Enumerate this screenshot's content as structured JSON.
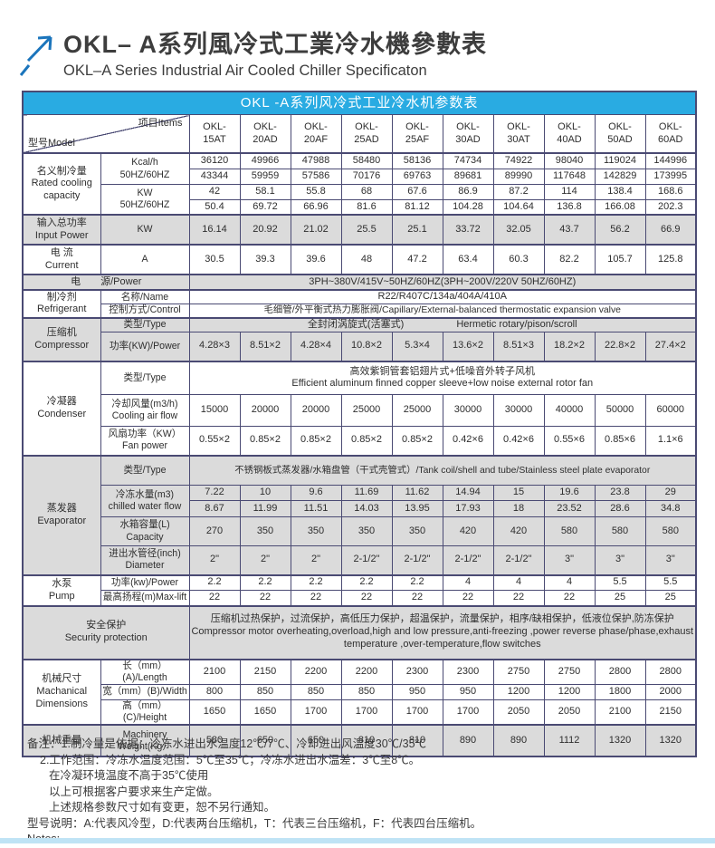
{
  "page": {
    "title_zh": "OKL– A系列風冷式工業冷水機參數表",
    "title_en": "OKL–A Series Industrial Air Cooled Chiller Specificaton"
  },
  "colors": {
    "banner_blue": "#29ABE2",
    "row_gray": "#DBDBDB",
    "border": "#4A4A73",
    "arrow_blue": "#1B75BC",
    "footer_bar": "#BFE3F5"
  },
  "table": {
    "banner": "OKL -A系列风冷式工业冷水机参数表",
    "corner": {
      "model": "型号Model",
      "items": "项目Items"
    },
    "models": [
      "OKL-\n15AT",
      "OKL-\n20AD",
      "OKL-\n20AF",
      "OKL-\n25AD",
      "OKL-\n25AF",
      "OKL-\n30AD",
      "OKL-\n30AT",
      "OKL-\n40AD",
      "OKL-\n50AD",
      "OKL-\n60AD"
    ],
    "capacity": {
      "label_zh": "名义制冷量",
      "label_en": "Rated cooling capacity",
      "item_kcal": "Kcal/h\n50HZ/60HZ",
      "item_kw": "KW\n50HZ/60HZ",
      "kcal_50hz": [
        "36120",
        "49966",
        "47988",
        "58480",
        "58136",
        "74734",
        "74922",
        "98040",
        "119024",
        "144996"
      ],
      "kcal_60hz": [
        "43344",
        "59959",
        "57586",
        "70176",
        "69763",
        "89681",
        "89990",
        "117648",
        "142829",
        "173995"
      ],
      "kw_50hz": [
        "42",
        "58.1",
        "55.8",
        "68",
        "67.6",
        "86.9",
        "87.2",
        "114",
        "138.4",
        "168.6"
      ],
      "kw_60hz": [
        "50.4",
        "69.72",
        "66.96",
        "81.6",
        "81.12",
        "104.28",
        "104.64",
        "136.8",
        "166.08",
        "202.3"
      ]
    },
    "input_power": {
      "label_zh": "输入总功率",
      "label_en": "Input Power",
      "item": "KW",
      "values": [
        "16.14",
        "20.92",
        "21.02",
        "25.5",
        "25.1",
        "33.72",
        "32.05",
        "43.7",
        "56.2",
        "66.9"
      ]
    },
    "current": {
      "label_zh": "电 流",
      "label_en": "Current",
      "item": "A",
      "values": [
        "30.5",
        "39.3",
        "39.6",
        "48",
        "47.2",
        "63.4",
        "60.3",
        "82.2",
        "105.7",
        "125.8"
      ]
    },
    "power_supply": {
      "label": "电　　源/Power",
      "value": "3PH~380V/415V~50HZ/60HZ(3PH~200V/220V  50HZ/60HZ)"
    },
    "refrigerant": {
      "label_zh": "制冷剂",
      "label_en": "Refrigerant",
      "item_name": "名称/Name",
      "name_value": "R22/R407C/134a/404A/410A",
      "item_control": "控制方式/Control",
      "control_value": "毛细管/外平衡式热力膨胀阀/Capillary/External-balanced thermostatic expansion valve"
    },
    "compressor": {
      "label_zh": "压缩机",
      "label_en": "Compressor",
      "item_type": "类型/Type",
      "type_zh": "全封闭涡旋式(活塞式)",
      "type_en": "Hermetic rotary/pison/scroll",
      "item_power": "功率(KW)/Power",
      "power_values": [
        "4.28×3",
        "8.51×2",
        "4.28×4",
        "10.8×2",
        "5.3×4",
        "13.6×2",
        "8.51×3",
        "18.2×2",
        "22.8×2",
        "27.4×2"
      ]
    },
    "condenser": {
      "label_zh": "冷凝器",
      "label_en": "Condenser",
      "item_type": "类型/Type",
      "type_zh": "高效紫铜管套铝翅片式+低噪音外转子风机",
      "type_en": "Efficient aluminum finned copper sleeve+low noise external rotor fan",
      "item_airflow": "冷却风量(m3/h)\nCooling air flow",
      "airflow_values": [
        "15000",
        "20000",
        "20000",
        "25000",
        "25000",
        "30000",
        "30000",
        "40000",
        "50000",
        "60000"
      ],
      "item_fan": "风扇功率（KW）\nFan power",
      "fan_values": [
        "0.55×2",
        "0.85×2",
        "0.85×2",
        "0.85×2",
        "0.85×2",
        "0.42×6",
        "0.42×6",
        "0.55×6",
        "0.85×6",
        "1.1×6"
      ]
    },
    "evaporator": {
      "label_zh": "蒸发器",
      "label_en": "Evaporator",
      "item_type": "类型/Type",
      "type_value": "不锈钢板式蒸发器/水箱盘管（干式壳管式）/Tank coil/shell and tube/Stainless steel plate evaporator",
      "item_chilled": "冷冻水量(m3)\nchilled water flow",
      "chilled_50hz": [
        "7.22",
        "10",
        "9.6",
        "11.69",
        "11.62",
        "14.94",
        "15",
        "19.6",
        "23.8",
        "29"
      ],
      "chilled_60hz": [
        "8.67",
        "11.99",
        "11.51",
        "14.03",
        "13.95",
        "17.93",
        "18",
        "23.52",
        "28.6",
        "34.8"
      ],
      "item_tank": "水箱容量(L)\nCapacity",
      "tank_values": [
        "270",
        "350",
        "350",
        "350",
        "350",
        "420",
        "420",
        "580",
        "580",
        "580"
      ],
      "item_pipe": "进出水管径(inch)\nDiameter",
      "pipe_values": [
        "2\"",
        "2\"",
        "2\"",
        "2-1/2\"",
        "2-1/2\"",
        "2-1/2\"",
        "2-1/2\"",
        "3\"",
        "3\"",
        "3\""
      ]
    },
    "pump": {
      "label_zh": "水泵",
      "label_en": "Pump",
      "item_power": "功率(kw)/Power",
      "power_values": [
        "2.2",
        "2.2",
        "2.2",
        "2.2",
        "2.2",
        "4",
        "4",
        "4",
        "5.5",
        "5.5"
      ],
      "item_lift": "最高扬程(m)Max-lift",
      "lift_values": [
        "22",
        "22",
        "22",
        "22",
        "22",
        "22",
        "22",
        "22",
        "25",
        "25"
      ]
    },
    "security": {
      "label_zh": "安全保护",
      "label_en": "Security protection",
      "text_zh": "压缩机过热保护，过流保护，高低压力保护，超温保护，流量保护，相序/缺相保护，低液位保护,防冻保护",
      "text_en": "Compressor motor overheating,overload,high and low pressure,anti-freezing ,power reverse phase/phase,exhaust temperature ,over-temperature,flow switches"
    },
    "dimensions": {
      "label_zh": "机械尺寸",
      "label_en": "Machanical Dimensions",
      "item_length": "长（mm）(A)/Length",
      "length_values": [
        "2100",
        "2150",
        "2200",
        "2200",
        "2300",
        "2300",
        "2750",
        "2750",
        "2800",
        "2800"
      ],
      "item_width": "宽（mm）(B)/Width",
      "width_values": [
        "800",
        "850",
        "850",
        "850",
        "950",
        "950",
        "1200",
        "1200",
        "1800",
        "2000"
      ],
      "item_height": "高（mm）(C)/Height",
      "height_values": [
        "1650",
        "1650",
        "1700",
        "1700",
        "1700",
        "1700",
        "2050",
        "2050",
        "2100",
        "2150"
      ]
    },
    "weight": {
      "label_zh": "机械重量",
      "item": "Machinery\nWeight(Kg）",
      "values": [
        "580",
        "650",
        "650",
        "810",
        "810",
        "890",
        "890",
        "1112",
        "1320",
        "1320"
      ]
    }
  },
  "notes": {
    "line1": "备注：1.制冷量是依据：冷冻水进出水温度12℃/7℃、冷却进出风温度30℃/35℃",
    "line2": "2.工作范围：冷冻水温度范围：5℃至35℃；冷冻水进出水温差：3℃至8℃。",
    "line3": "在冷凝环境温度不高于35℃使用",
    "line4": "以上可根据客户要求来生产定做。",
    "line5": "上述规格参数尺寸如有变更，恕不另行通知。",
    "line6": "型号说明：A:代表风冷型，D:代表两台压缩机，T：代表三台压缩机，F：代表四台压缩机。",
    "line7": "Notes:"
  }
}
